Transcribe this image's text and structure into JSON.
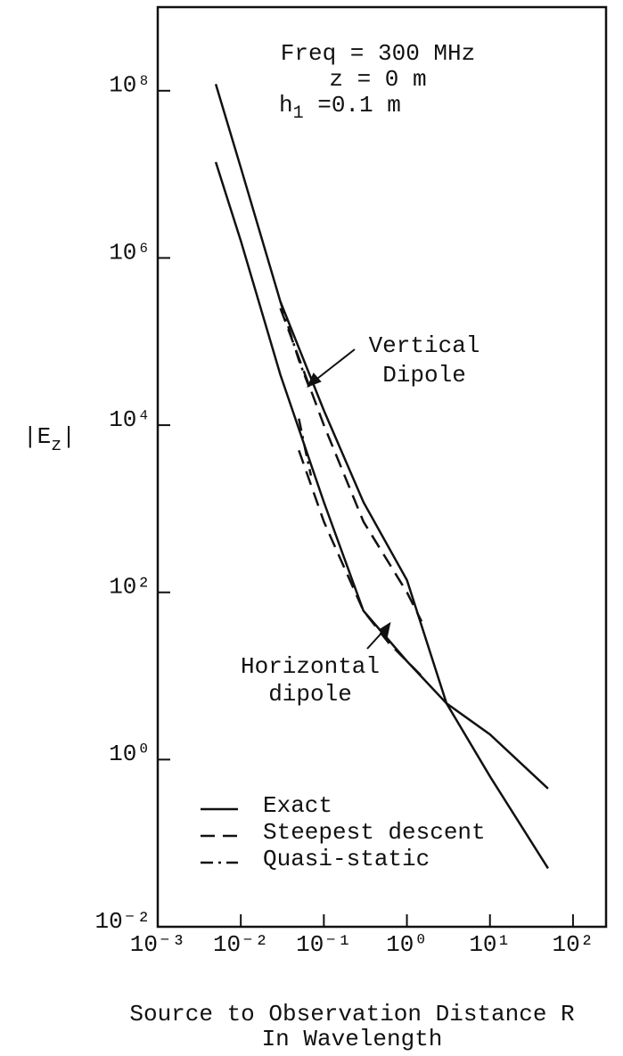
{
  "chart_data": {
    "type": "line",
    "log_x": true,
    "log_y": true,
    "xlim": [
      0.001,
      250
    ],
    "ylim": [
      0.01,
      1000000000
    ],
    "xticks": [
      {
        "value": 0.001,
        "label": "10⁻³"
      },
      {
        "value": 0.01,
        "label": "10⁻²"
      },
      {
        "value": 0.1,
        "label": "10⁻¹"
      },
      {
        "value": 1,
        "label": "10⁰"
      },
      {
        "value": 10,
        "label": "10¹"
      },
      {
        "value": 100,
        "label": "10²"
      }
    ],
    "yticks": [
      {
        "value": 0.01,
        "label": "10⁻²"
      },
      {
        "value": 1,
        "label": "10⁰"
      },
      {
        "value": 100,
        "label": "10²"
      },
      {
        "value": 10000,
        "label": "10⁴"
      },
      {
        "value": 1000000,
        "label": "10⁶"
      },
      {
        "value": 100000000,
        "label": "10⁸"
      }
    ],
    "ylabel": [
      "|E",
      "z",
      "|"
    ],
    "xlabel": [
      "Source to Observation Distance R",
      "In Wavelength"
    ],
    "annotations": {
      "params": [
        "Freq = 300 MHz",
        "z = 0 m"
      ],
      "h1": [
        "h",
        "1",
        " =0.1 m"
      ],
      "vertical": [
        "Vertical",
        "Dipole"
      ],
      "horizontal": [
        "Horizontal",
        "dipole"
      ]
    },
    "legend": "lower left",
    "series": [
      {
        "name": "Exact",
        "color": "#111111",
        "style": "solid",
        "curves": [
          {
            "x": [
              0.005,
              0.01,
              0.03,
              0.1,
              0.3,
              1,
              3,
              10,
              50
            ],
            "values": [
              120000000,
              12000000,
              300000,
              15000,
              1200,
              140,
              4.7,
              0.63,
              0.05
            ]
          },
          {
            "x": [
              0.005,
              0.01,
              0.03,
              0.1,
              0.3,
              1,
              3,
              10,
              50
            ],
            "values": [
              14000000,
              1600000,
              40000,
              1200,
              60,
              15,
              4.7,
              2,
              0.45
            ]
          }
        ]
      },
      {
        "name": "Steepest descent",
        "color": "#111111",
        "style": "dashed",
        "curves": [
          {
            "x": [
              0.03,
              0.1,
              0.3,
              1,
              1.5
            ],
            "values": [
              250000,
              10000,
              700,
              100,
              45
            ]
          },
          {
            "x": [
              0.05,
              0.1,
              0.3,
              0.6,
              1,
              1.5
            ],
            "values": [
              5000,
              700,
              60,
              25,
              15,
              10
            ]
          }
        ]
      },
      {
        "name": "Quasi-static",
        "color": "#111111",
        "style": "dashdot",
        "curves": [
          {
            "x": [
              0.03,
              0.05,
              0.07
            ],
            "values": [
              300000,
              60000,
              25000
            ]
          },
          {
            "x": [
              0.05,
              0.06,
              0.07
            ],
            "values": [
              12000,
              5000,
              2500
            ]
          }
        ]
      }
    ]
  }
}
